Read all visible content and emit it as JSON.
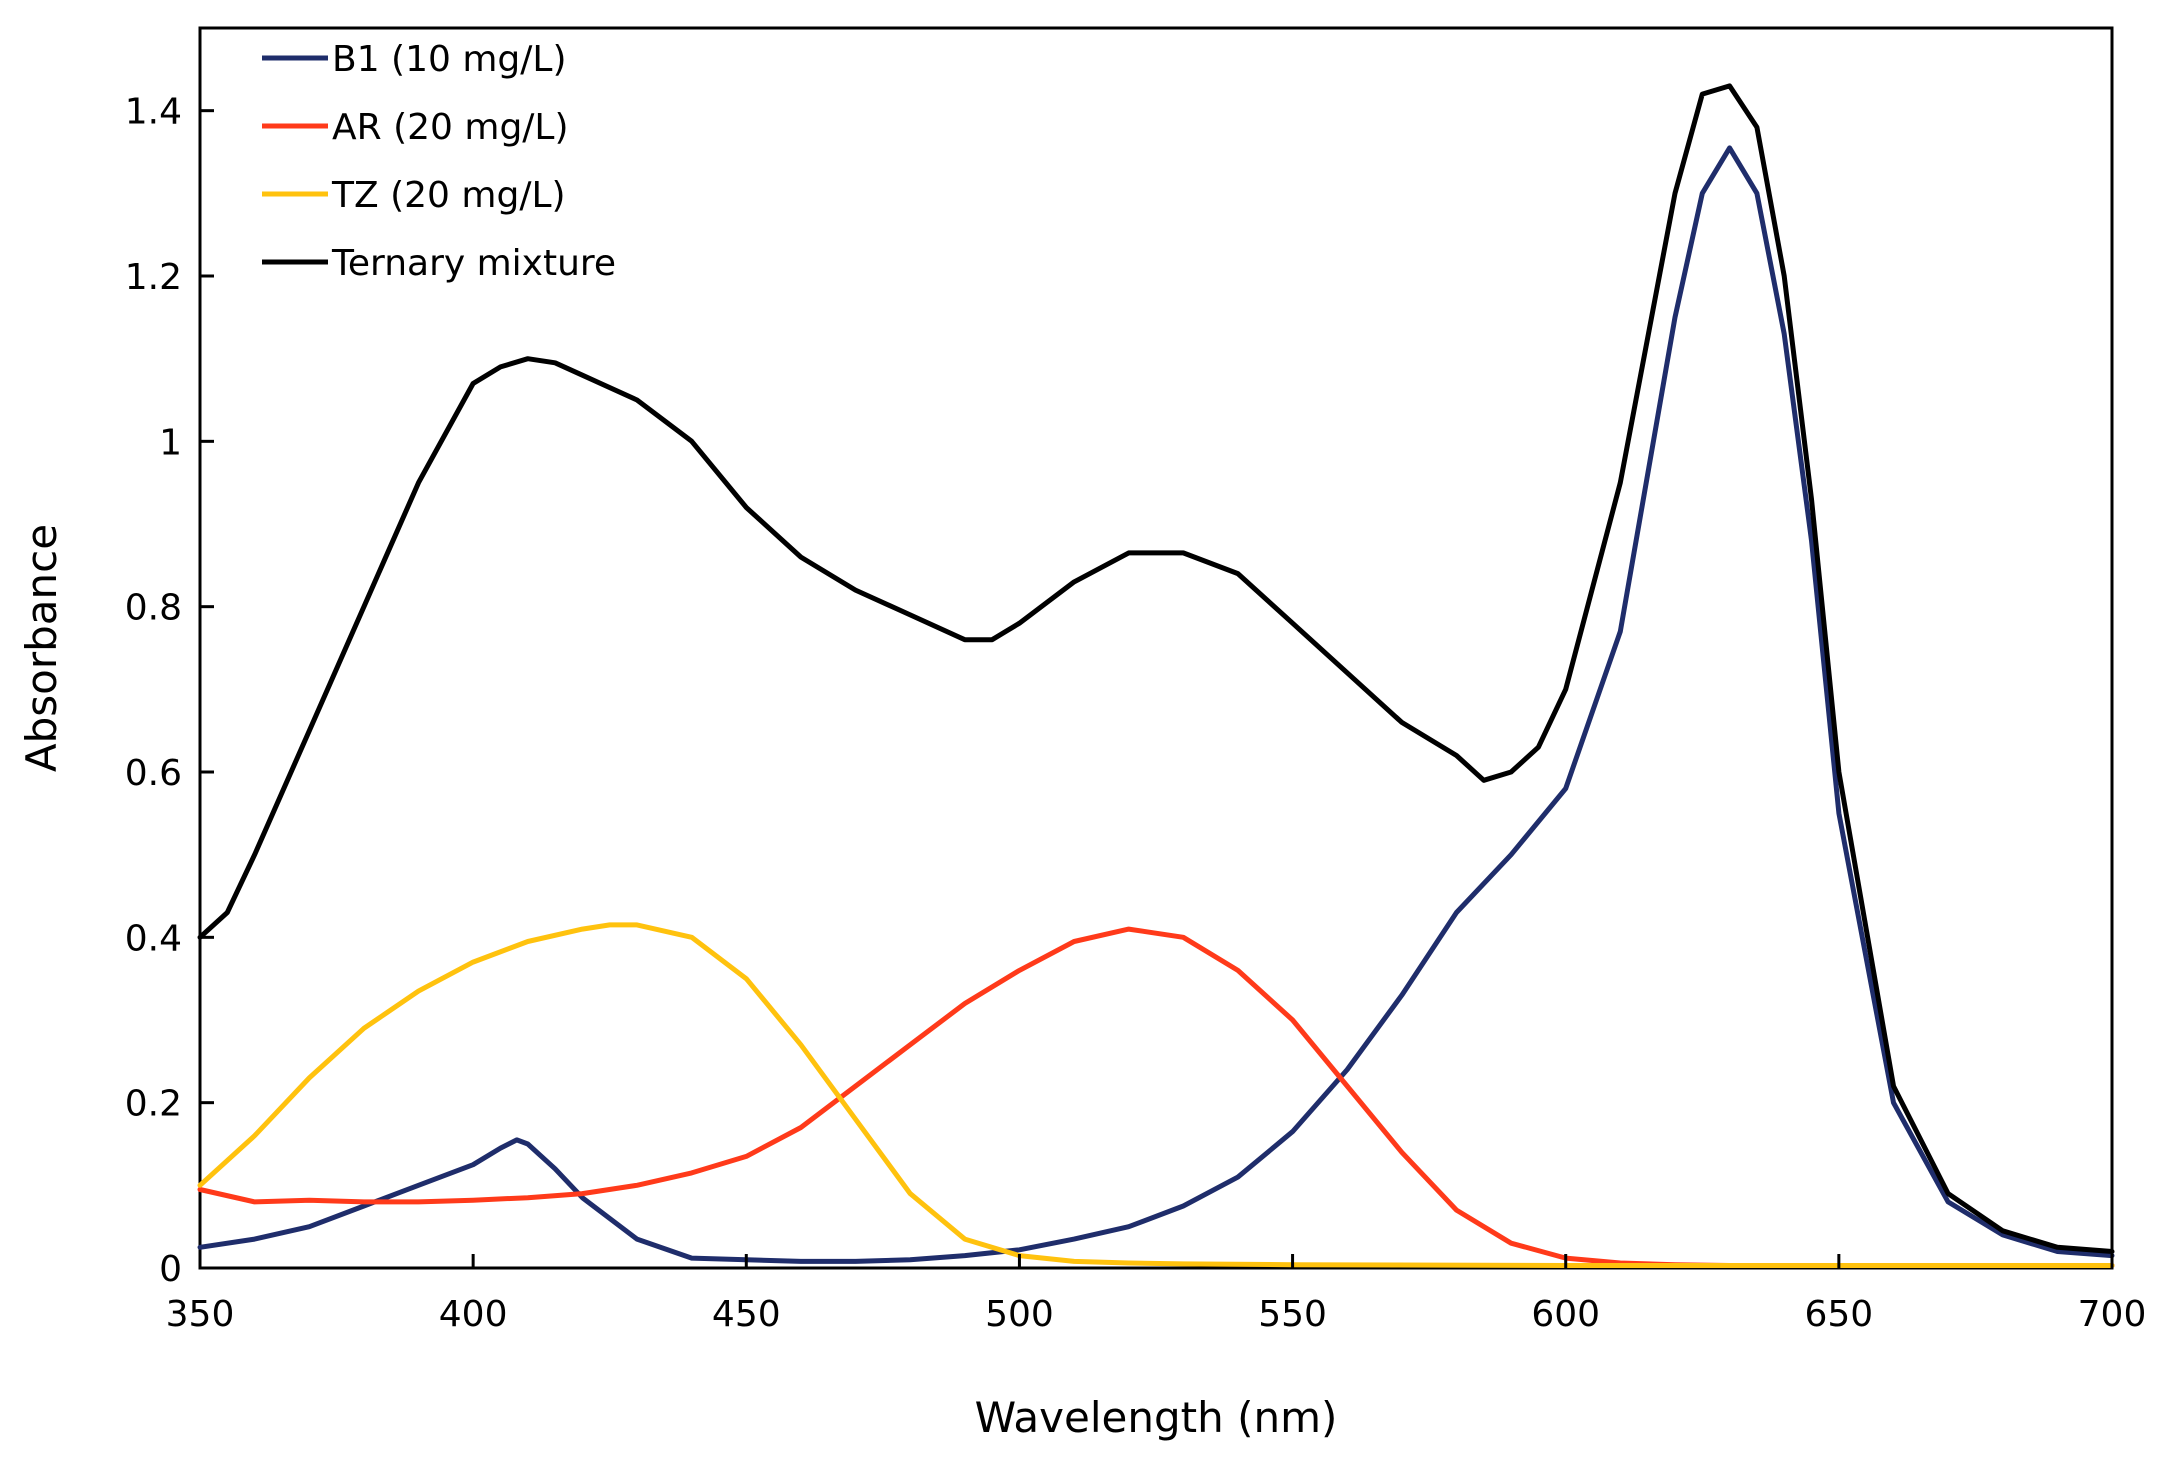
{
  "chart_data": {
    "type": "line",
    "xlabel": "Wavelength (nm)",
    "ylabel": "Absorbance",
    "xlim": [
      350,
      700
    ],
    "ylim": [
      0,
      1.5
    ],
    "xticks": [
      350,
      400,
      450,
      500,
      550,
      600,
      650,
      700
    ],
    "xtick_labels": [
      "350",
      "400",
      "450",
      "500",
      "550",
      "600",
      "650",
      "700"
    ],
    "yticks": [
      0,
      0.2,
      0.4,
      0.6,
      0.8,
      1.0,
      1.2,
      1.4
    ],
    "ytick_labels": [
      "0",
      "0.2",
      "0.4",
      "0.6",
      "0.8",
      "1",
      "1.2",
      "1.4"
    ],
    "grid": false,
    "legend_position": "top-left",
    "series": [
      {
        "name": "B1 (10 mg/L)",
        "color": "#1f2d6b",
        "x": [
          350,
          360,
          370,
          380,
          390,
          400,
          405,
          408,
          410,
          415,
          420,
          430,
          440,
          450,
          460,
          470,
          480,
          490,
          500,
          510,
          520,
          530,
          540,
          550,
          560,
          570,
          580,
          590,
          600,
          610,
          620,
          625,
          630,
          635,
          640,
          645,
          650,
          660,
          670,
          680,
          690,
          700
        ],
        "y": [
          0.025,
          0.035,
          0.05,
          0.075,
          0.1,
          0.125,
          0.145,
          0.155,
          0.15,
          0.12,
          0.085,
          0.035,
          0.012,
          0.01,
          0.008,
          0.008,
          0.01,
          0.015,
          0.022,
          0.035,
          0.05,
          0.075,
          0.11,
          0.165,
          0.24,
          0.33,
          0.43,
          0.5,
          0.58,
          0.77,
          1.15,
          1.3,
          1.355,
          1.3,
          1.13,
          0.88,
          0.55,
          0.2,
          0.08,
          0.04,
          0.02,
          0.015
        ]
      },
      {
        "name": "AR (20 mg/L)",
        "color": "#ff3a1a",
        "x": [
          350,
          360,
          370,
          380,
          390,
          400,
          410,
          420,
          430,
          440,
          450,
          460,
          470,
          480,
          490,
          500,
          510,
          520,
          530,
          540,
          550,
          560,
          570,
          580,
          590,
          600,
          610,
          620,
          630,
          650,
          700
        ],
        "y": [
          0.095,
          0.08,
          0.082,
          0.08,
          0.08,
          0.082,
          0.085,
          0.09,
          0.1,
          0.115,
          0.135,
          0.17,
          0.22,
          0.27,
          0.32,
          0.36,
          0.395,
          0.41,
          0.4,
          0.36,
          0.3,
          0.22,
          0.14,
          0.07,
          0.03,
          0.012,
          0.006,
          0.004,
          0.003,
          0.003,
          0.003
        ]
      },
      {
        "name": "TZ (20 mg/L)",
        "color": "#ffc20e",
        "x": [
          350,
          360,
          370,
          380,
          390,
          400,
          410,
          420,
          425,
          430,
          440,
          450,
          460,
          470,
          480,
          490,
          500,
          510,
          520,
          530,
          550,
          600,
          650,
          700
        ],
        "y": [
          0.1,
          0.16,
          0.23,
          0.29,
          0.335,
          0.37,
          0.395,
          0.41,
          0.415,
          0.415,
          0.4,
          0.35,
          0.27,
          0.18,
          0.09,
          0.035,
          0.015,
          0.008,
          0.006,
          0.005,
          0.004,
          0.003,
          0.003,
          0.003
        ]
      },
      {
        "name": "Ternary mixture",
        "color": "#000000",
        "x": [
          350,
          355,
          360,
          370,
          380,
          390,
          400,
          405,
          410,
          415,
          420,
          430,
          440,
          450,
          460,
          470,
          480,
          490,
          495,
          500,
          510,
          520,
          530,
          540,
          550,
          560,
          570,
          580,
          585,
          590,
          595,
          600,
          610,
          620,
          625,
          630,
          635,
          640,
          645,
          650,
          660,
          670,
          680,
          690,
          700
        ],
        "y": [
          0.4,
          0.43,
          0.5,
          0.65,
          0.8,
          0.95,
          1.07,
          1.09,
          1.1,
          1.095,
          1.08,
          1.05,
          1.0,
          0.92,
          0.86,
          0.82,
          0.79,
          0.76,
          0.76,
          0.78,
          0.83,
          0.865,
          0.865,
          0.84,
          0.78,
          0.72,
          0.66,
          0.62,
          0.59,
          0.6,
          0.63,
          0.7,
          0.95,
          1.3,
          1.42,
          1.43,
          1.38,
          1.2,
          0.93,
          0.6,
          0.22,
          0.09,
          0.045,
          0.025,
          0.02
        ]
      }
    ]
  }
}
